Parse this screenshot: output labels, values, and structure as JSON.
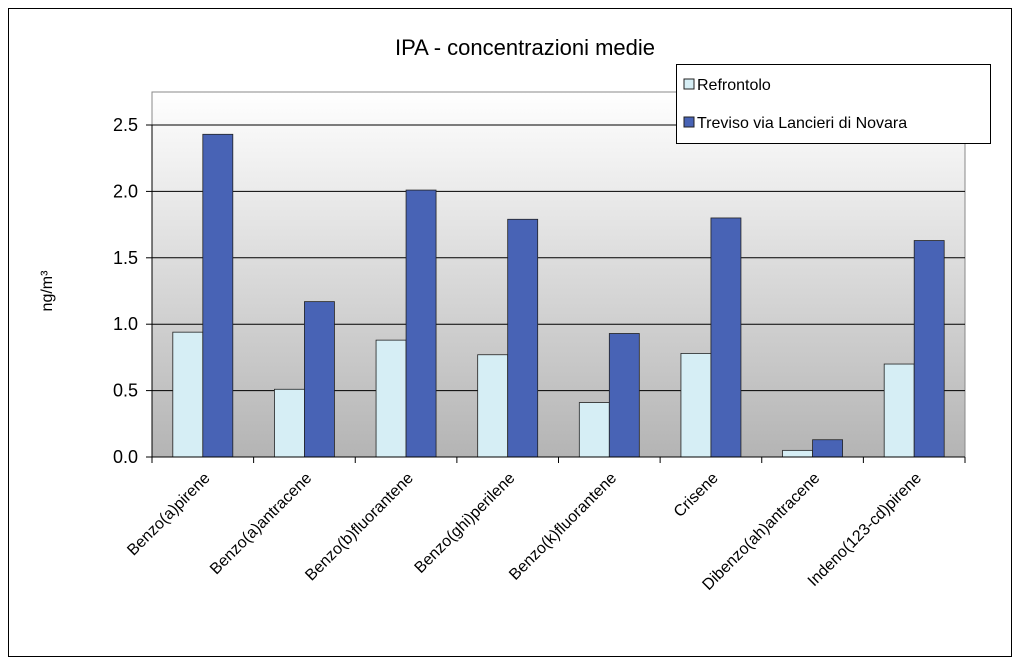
{
  "chart_data": {
    "type": "bar",
    "title": "IPA - concentrazioni medie",
    "y_label": "ng/m³",
    "categories": [
      "Benzo(a)pirene",
      "Benzo(a)antracene",
      "Benzo(b)fluorantene",
      "Benzo(ghi)perilene",
      "Benzo(k)fluorantene",
      "Crisene",
      "Dibenzo(ah)antracene",
      "Indeno(123-cd)pirene"
    ],
    "series": [
      {
        "name": "Refrontolo",
        "color": "#d6eef5",
        "values": [
          0.94,
          0.51,
          0.88,
          0.77,
          0.41,
          0.78,
          0.05,
          0.7
        ]
      },
      {
        "name": "Treviso via Lancieri di Novara",
        "color": "#4863b5",
        "values": [
          2.43,
          1.17,
          2.01,
          1.79,
          0.93,
          1.8,
          0.13,
          1.63
        ]
      }
    ],
    "ylim": [
      0,
      2.5
    ],
    "yticks": [
      {
        "value": 0,
        "label": "0.0"
      },
      0.5,
      {
        "value": 1,
        "label": "1.0"
      },
      1.5,
      {
        "value": 2,
        "label": "2.0"
      },
      2.5
    ],
    "grid": true,
    "legend": "top-right"
  }
}
